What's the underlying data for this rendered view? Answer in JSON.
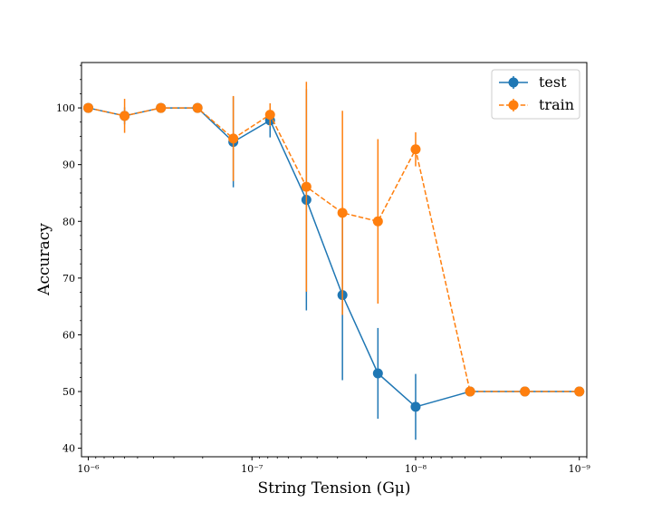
{
  "chart_data": {
    "type": "line",
    "xlabel": "String Tension (Gμ)",
    "ylabel": "Accuracy",
    "xscale": "log",
    "x_direction": "decreasing",
    "xlim": [
      1.1e-06,
      9e-10
    ],
    "ylim": [
      38.5,
      108
    ],
    "x_ticks": [
      {
        "value": 1e-06,
        "label": "10⁻⁶"
      },
      {
        "value": 1e-07,
        "label": "10⁻⁷"
      },
      {
        "value": 1e-08,
        "label": "10⁻⁸"
      },
      {
        "value": 1e-09,
        "label": "10⁻⁹"
      }
    ],
    "y_ticks": [
      40,
      50,
      60,
      70,
      80,
      90,
      100
    ],
    "legend_position": "top-right",
    "x": [
      1e-06,
      6e-07,
      3.6e-07,
      2.15e-07,
      1.3e-07,
      7.75e-08,
      4.65e-08,
      2.8e-08,
      1.7e-08,
      1e-08,
      4.65e-09,
      2.15e-09,
      1e-09
    ],
    "series": [
      {
        "name": "test",
        "color": "#1f77b4",
        "linestyle": "solid",
        "values": [
          100,
          98.6,
          100,
          100,
          94,
          97.8,
          83.8,
          67,
          53.2,
          47.3,
          50,
          50,
          50
        ],
        "errors": [
          0,
          1.5,
          0,
          0,
          8,
          3,
          19.5,
          15,
          8,
          5.8,
          0,
          0,
          0
        ]
      },
      {
        "name": "train",
        "color": "#ff7f0e",
        "linestyle": "dashed",
        "values": [
          100,
          98.6,
          100,
          100,
          94.6,
          98.8,
          86.1,
          81.5,
          80,
          92.7,
          50,
          50,
          50
        ],
        "errors": [
          0,
          3,
          0,
          0,
          7.5,
          2,
          18.5,
          18,
          14.5,
          3,
          0,
          0,
          0
        ]
      }
    ]
  }
}
